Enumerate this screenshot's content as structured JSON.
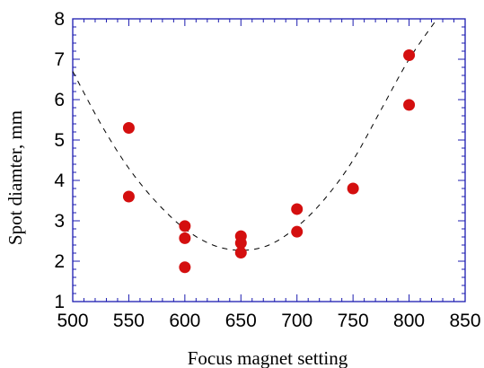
{
  "chart_data": {
    "type": "scatter",
    "title": "",
    "xlabel": "Focus magnet setting",
    "ylabel": "Spot diamter, mm",
    "xlim": [
      500,
      850
    ],
    "ylim": [
      1,
      8
    ],
    "x_ticks": [
      500,
      550,
      600,
      650,
      700,
      750,
      800,
      850
    ],
    "y_ticks": [
      1,
      2,
      3,
      4,
      5,
      6,
      7,
      8
    ],
    "grid": false,
    "colors": {
      "axis": "#1b1bb0",
      "marker": "#d40f0f",
      "fit": "#000000"
    },
    "series": [
      {
        "marker": "circle",
        "x": [
          550,
          550,
          600,
          600,
          600,
          650,
          650,
          650,
          700,
          700,
          750,
          800,
          800
        ],
        "y": [
          5.3,
          3.6,
          2.87,
          2.57,
          1.85,
          2.62,
          2.45,
          2.21,
          3.29,
          2.73,
          3.8,
          7.1,
          5.87
        ]
      }
    ],
    "fit_curve": {
      "style": "dashed",
      "x": [
        500,
        525,
        550,
        575,
        600,
        625,
        650,
        675,
        700,
        725,
        750,
        775,
        800,
        825
      ],
      "y": [
        6.7,
        5.4,
        4.3,
        3.45,
        2.8,
        2.4,
        2.27,
        2.4,
        2.85,
        3.55,
        4.5,
        5.75,
        7.0,
        8.0
      ]
    }
  }
}
